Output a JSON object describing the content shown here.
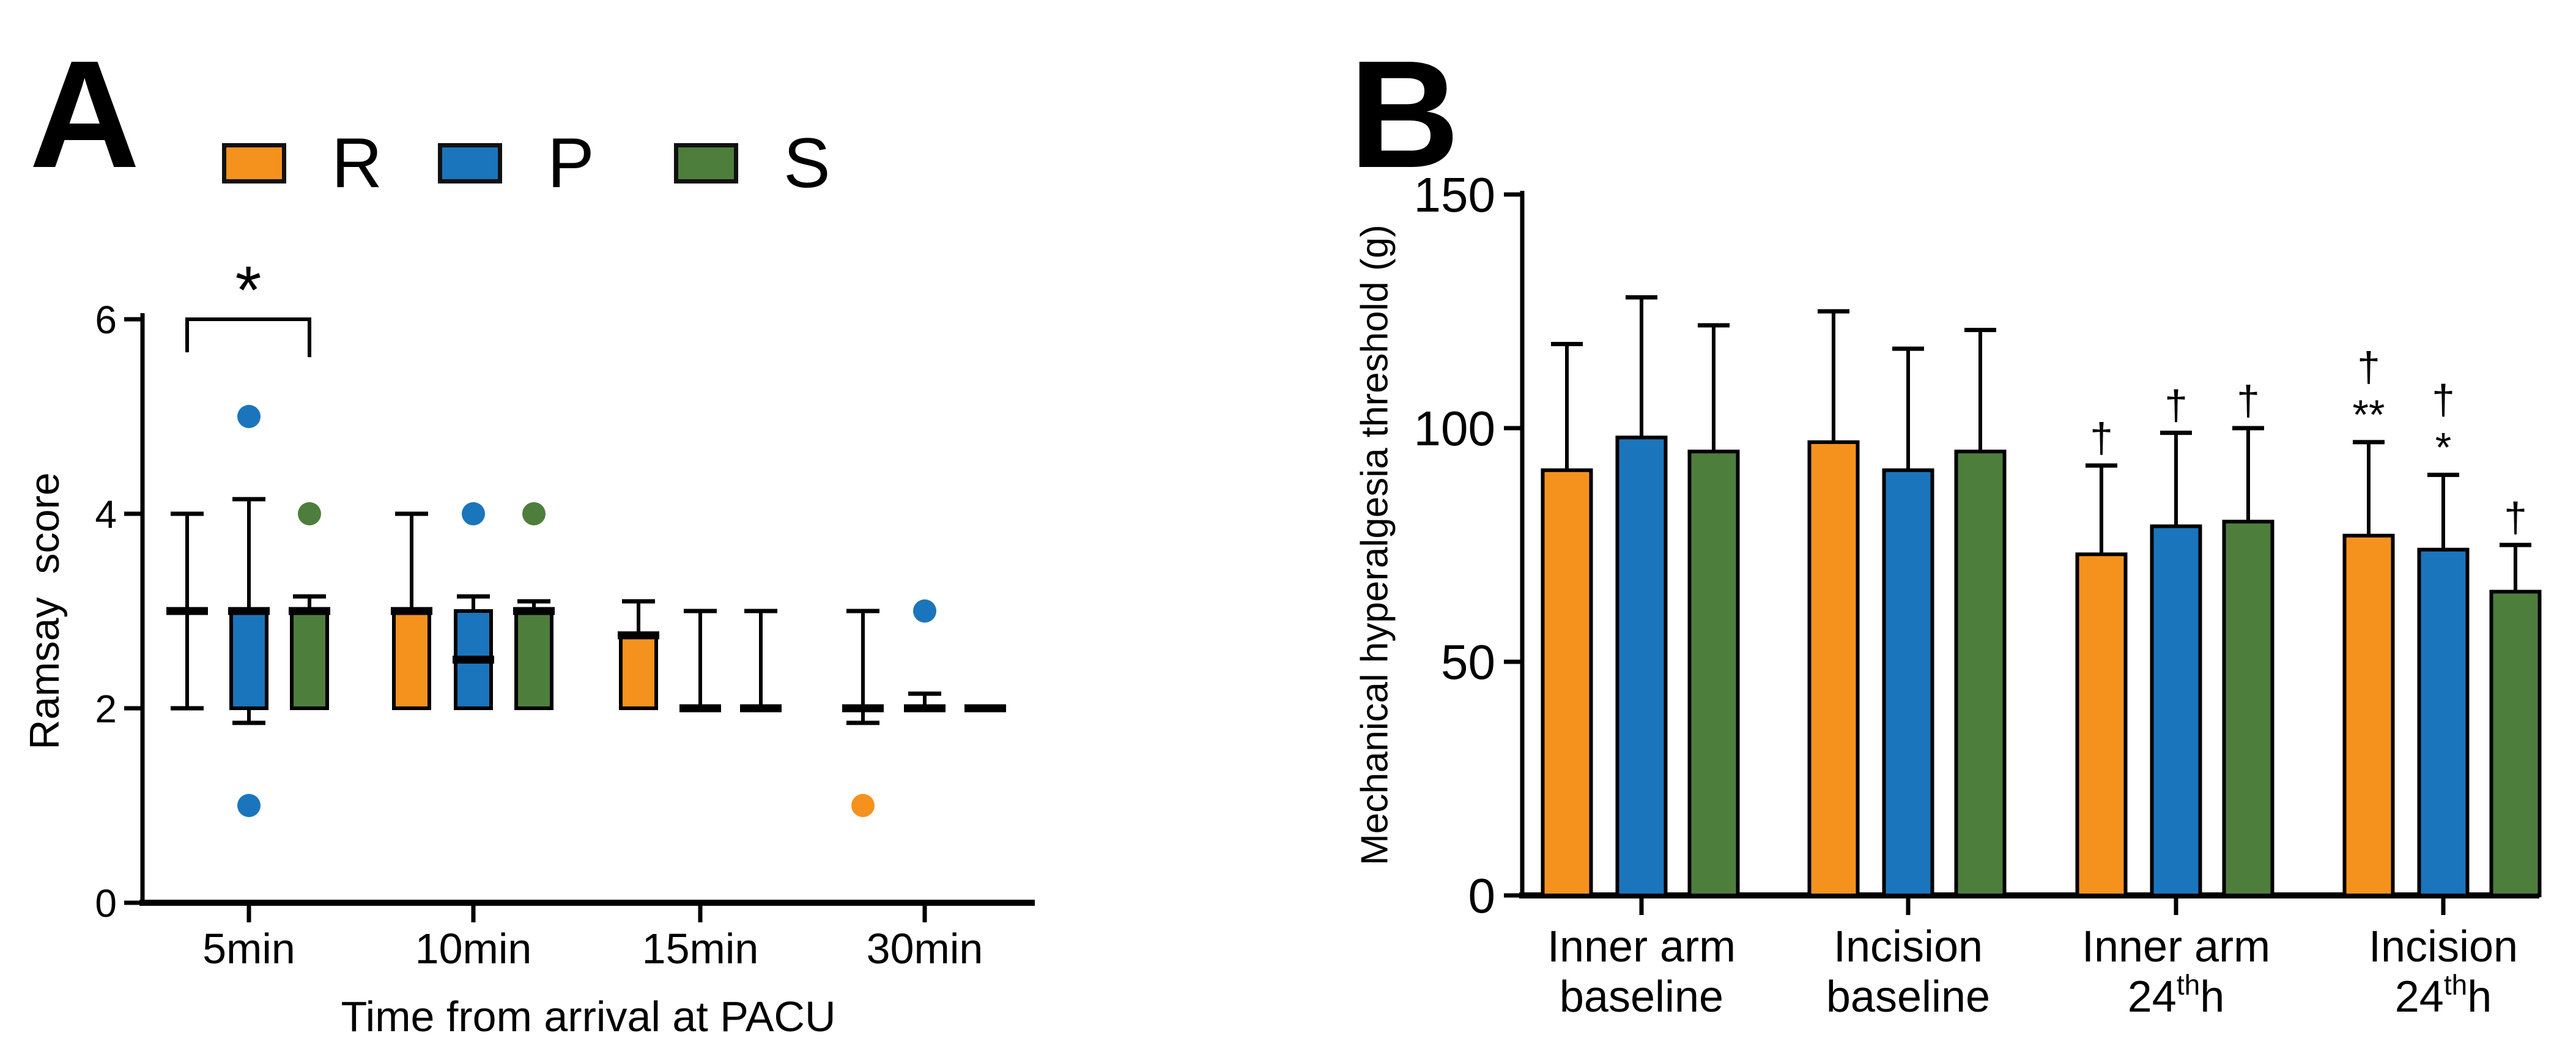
{
  "figure": {
    "panel_a_letter": "A",
    "panel_b_letter": "B",
    "background": "#ffffff"
  },
  "colors": {
    "R": "#F5921E",
    "P": "#1B75BC",
    "S": "#4E7E3C",
    "axis": "#000000"
  },
  "legend": [
    {
      "label": "R",
      "color": "#F5921E"
    },
    {
      "label": "P",
      "color": "#1B75BC"
    },
    {
      "label": "S",
      "color": "#4E7E3C"
    }
  ],
  "chart_data": [
    {
      "type": "box",
      "panel": "A",
      "title": "",
      "xlabel": "Time from arrival at PACU",
      "ylabel": "Ramsay  score",
      "ylim": [
        0,
        6
      ],
      "yticks": [
        0,
        2,
        4,
        6
      ],
      "grid": false,
      "legend_position": "top",
      "categories": [
        "5min",
        "10min",
        "15min",
        "30min"
      ],
      "series": [
        "R",
        "P",
        "S"
      ],
      "groups": [
        {
          "label": "5min",
          "boxes": [
            {
              "series": "R",
              "q1": 3,
              "q3": 3,
              "median": 3,
              "whisker_low": 2,
              "whisker_high": 4,
              "outliers": []
            },
            {
              "series": "P",
              "q1": 2,
              "q3": 3,
              "median": 3,
              "whisker_low": 1.85,
              "whisker_high": 4.15,
              "outliers": [
                5,
                1
              ]
            },
            {
              "series": "S",
              "q1": 2,
              "q3": 3,
              "median": 3,
              "whisker_low": null,
              "whisker_high": 3.15,
              "outliers": [
                4
              ]
            }
          ]
        },
        {
          "label": "10min",
          "boxes": [
            {
              "series": "R",
              "q1": 2,
              "q3": 3,
              "median": 3,
              "whisker_low": null,
              "whisker_high": 4,
              "outliers": []
            },
            {
              "series": "P",
              "q1": 2,
              "q3": 3,
              "median": 2.5,
              "whisker_low": null,
              "whisker_high": 3.15,
              "outliers": [
                4
              ]
            },
            {
              "series": "S",
              "q1": 2,
              "q3": 3,
              "median": 3,
              "whisker_low": null,
              "whisker_high": 3.1,
              "outliers": [
                4
              ]
            }
          ]
        },
        {
          "label": "15min",
          "boxes": [
            {
              "series": "R",
              "q1": 2,
              "q3": 2.75,
              "median": 2.75,
              "whisker_low": null,
              "whisker_high": 3.1,
              "outliers": []
            },
            {
              "series": "P",
              "q1": 2,
              "q3": 2,
              "median": 2,
              "whisker_low": null,
              "whisker_high": 3,
              "outliers": []
            },
            {
              "series": "S",
              "q1": 2,
              "q3": 2,
              "median": 2,
              "whisker_low": null,
              "whisker_high": 3,
              "outliers": []
            }
          ]
        },
        {
          "label": "30min",
          "boxes": [
            {
              "series": "R",
              "q1": 2,
              "q3": 2,
              "median": 2,
              "whisker_low": 1.85,
              "whisker_high": 3,
              "outliers": [
                1
              ]
            },
            {
              "series": "P",
              "q1": 2,
              "q3": 2,
              "median": 2,
              "whisker_low": null,
              "whisker_high": 2.15,
              "outliers": [
                3
              ]
            },
            {
              "series": "S",
              "q1": 2,
              "q3": 2,
              "median": 2,
              "whisker_low": null,
              "whisker_high": null,
              "outliers": []
            }
          ]
        }
      ],
      "significance": {
        "symbol": "*",
        "category": "5min",
        "from": "R",
        "to": "S"
      }
    },
    {
      "type": "bar",
      "panel": "B",
      "title": "",
      "xlabel": "",
      "ylabel": "Mechanical hyperalgesia threshold (g)",
      "ylim": [
        0,
        150
      ],
      "yticks": [
        0,
        50,
        100,
        150
      ],
      "grid": false,
      "error_bars": "upper",
      "series": [
        "R",
        "P",
        "S"
      ],
      "groups": [
        {
          "line1": "Inner arm",
          "line2": [
            {
              "t": "baseline"
            }
          ],
          "bars": [
            {
              "series": "R",
              "value": 91,
              "err_top": 118,
              "sig": []
            },
            {
              "series": "P",
              "value": 98,
              "err_top": 128,
              "sig": []
            },
            {
              "series": "S",
              "value": 95,
              "err_top": 122,
              "sig": []
            }
          ]
        },
        {
          "line1": "Incision",
          "line2": [
            {
              "t": "baseline"
            }
          ],
          "bars": [
            {
              "series": "R",
              "value": 97,
              "err_top": 125,
              "sig": []
            },
            {
              "series": "P",
              "value": 91,
              "err_top": 117,
              "sig": []
            },
            {
              "series": "S",
              "value": 95,
              "err_top": 121,
              "sig": []
            }
          ]
        },
        {
          "line1": "Inner arm",
          "line2": [
            {
              "t": "24"
            },
            {
              "t": "th",
              "sup": true
            },
            {
              "t": "h"
            }
          ],
          "bars": [
            {
              "series": "R",
              "value": 73,
              "err_top": 92,
              "sig": [
                "†"
              ]
            },
            {
              "series": "P",
              "value": 79,
              "err_top": 99,
              "sig": [
                "†"
              ]
            },
            {
              "series": "S",
              "value": 80,
              "err_top": 100,
              "sig": [
                "†"
              ]
            }
          ]
        },
        {
          "line1": "Incision",
          "line2": [
            {
              "t": "24"
            },
            {
              "t": "th",
              "sup": true
            },
            {
              "t": "h"
            }
          ],
          "bars": [
            {
              "series": "R",
              "value": 77,
              "err_top": 97,
              "sig": [
                "**",
                "†"
              ]
            },
            {
              "series": "P",
              "value": 74,
              "err_top": 90,
              "sig": [
                "*",
                "†"
              ]
            },
            {
              "series": "S",
              "value": 65,
              "err_top": 75,
              "sig": [
                "†"
              ]
            }
          ]
        }
      ]
    }
  ]
}
